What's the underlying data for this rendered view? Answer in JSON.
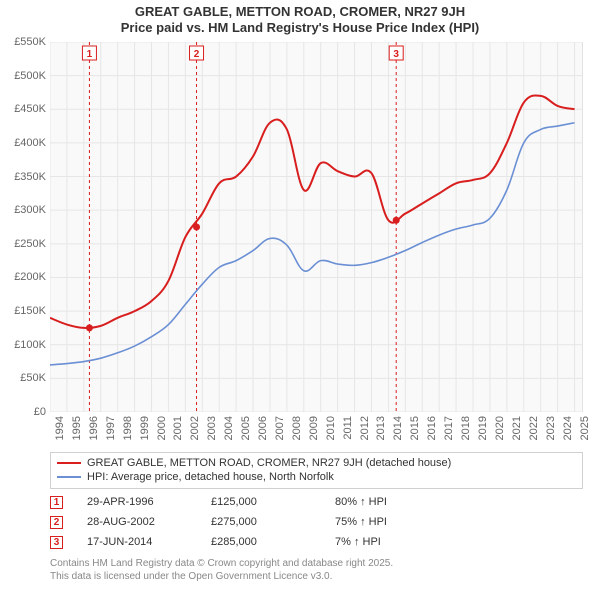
{
  "title_line1": "GREAT GABLE, METTON ROAD, CROMER, NR27 9JH",
  "title_line2": "Price paid vs. HM Land Registry's House Price Index (HPI)",
  "chart": {
    "type": "line",
    "background_color": "#ffffff",
    "plot_bg_color": "#f9f9f9",
    "grid_color": "#e6e6e6",
    "axis_color": "#cccccc",
    "label_color": "#666666",
    "label_fontsize": 11,
    "title_fontsize": 13,
    "x_years": [
      1994,
      1995,
      1996,
      1997,
      1998,
      1999,
      2000,
      2001,
      2002,
      2003,
      2004,
      2005,
      2006,
      2007,
      2008,
      2009,
      2010,
      2011,
      2012,
      2013,
      2014,
      2015,
      2016,
      2017,
      2018,
      2019,
      2020,
      2021,
      2022,
      2023,
      2024,
      2025
    ],
    "xlim": [
      1994,
      2025.5
    ],
    "ylim": [
      0,
      550
    ],
    "ytick_step": 50,
    "y_tick_labels": [
      "£0",
      "£50K",
      "£100K",
      "£150K",
      "£200K",
      "£250K",
      "£300K",
      "£350K",
      "£400K",
      "£450K",
      "£500K",
      "£550K"
    ],
    "series": [
      {
        "name": "GREAT GABLE, METTON ROAD, CROMER, NR27 9JH (detached house)",
        "color": "#d81e1e",
        "line_width": 2,
        "y": [
          140,
          130,
          125,
          128,
          140,
          150,
          165,
          195,
          260,
          295,
          340,
          350,
          380,
          430,
          420,
          330,
          370,
          358,
          350,
          355,
          285,
          295,
          310,
          325,
          340,
          345,
          355,
          400,
          460,
          470,
          455,
          450
        ]
      },
      {
        "name": "HPI: Average price, detached house, North Norfolk",
        "color": "#6a8fd4",
        "line_width": 1.6,
        "y": [
          70,
          72,
          75,
          80,
          88,
          98,
          112,
          130,
          160,
          190,
          215,
          225,
          240,
          258,
          248,
          210,
          225,
          220,
          218,
          222,
          230,
          240,
          252,
          263,
          272,
          278,
          288,
          330,
          400,
          420,
          425,
          430
        ]
      }
    ],
    "event_markers": [
      {
        "n": "1",
        "x": 1996.33,
        "y": 125,
        "line_color": "#d81e1e"
      },
      {
        "n": "2",
        "x": 2002.66,
        "y": 275,
        "line_color": "#d81e1e"
      },
      {
        "n": "3",
        "x": 2014.46,
        "y": 285,
        "line_color": "#d81e1e"
      }
    ],
    "marker_box_border": "#d81e1e",
    "marker_text_color": "#d81e1e",
    "event_line_dash": "3,3"
  },
  "legend": {
    "border_color": "#d0d0d0",
    "fontsize": 11
  },
  "events": [
    {
      "n": "1",
      "date": "29-APR-1996",
      "price": "£125,000",
      "delta": "80% ↑ HPI"
    },
    {
      "n": "2",
      "date": "28-AUG-2002",
      "price": "£275,000",
      "delta": "75% ↑ HPI"
    },
    {
      "n": "3",
      "date": "17-JUN-2014",
      "price": "£285,000",
      "delta": "7% ↑ HPI"
    }
  ],
  "footer_line1": "Contains HM Land Registry data © Crown copyright and database right 2025.",
  "footer_line2": "This data is licensed under the Open Government Licence v3.0."
}
